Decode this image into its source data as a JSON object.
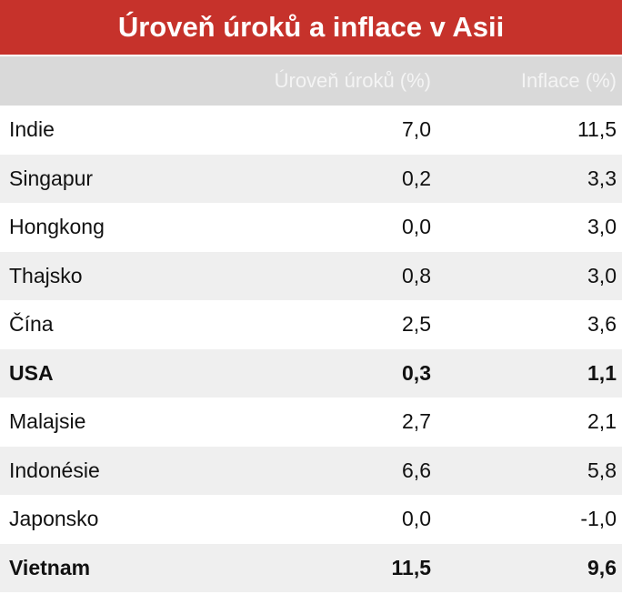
{
  "title": "Úroveň úroků a inflace v Asii",
  "table": {
    "header": [
      "",
      "Úroveň úroků (%)",
      "Inflace (%)"
    ],
    "rows": [
      {
        "cells": [
          "Indie",
          "7,0",
          "11,5"
        ]
      },
      {
        "cells": [
          "Singapur",
          "0,2",
          "3,3"
        ]
      },
      {
        "cells": [
          "Hongkong",
          "0,0",
          "3,0"
        ]
      },
      {
        "cells": [
          "Thajsko",
          "0,8",
          "3,0"
        ]
      },
      {
        "cells": [
          "Čína",
          "2,5",
          "3,6"
        ]
      },
      {
        "cells": [
          "USA",
          "0,3",
          "1,1"
        ],
        "weight": "bold"
      },
      {
        "cells": [
          "Malajsie",
          "2,7",
          "2,1"
        ]
      },
      {
        "cells": [
          "Indonésie",
          "6,6",
          "5,8"
        ]
      },
      {
        "cells": [
          "Japonsko",
          "0,0",
          "-1,0"
        ]
      },
      {
        "cells": [
          "Vietnam",
          "11,5",
          "9,6"
        ],
        "weight": "bold"
      }
    ]
  }
}
